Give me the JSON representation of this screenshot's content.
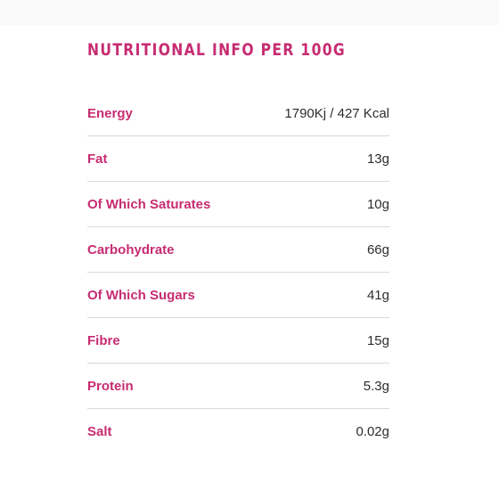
{
  "title": "NUTRITIONAL INFO PER 100G",
  "rows": [
    {
      "label": "Energy",
      "value": "1790Kj / 427 Kcal"
    },
    {
      "label": "Fat",
      "value": "13g"
    },
    {
      "label": "Of Which Saturates",
      "value": "10g"
    },
    {
      "label": "Carbohydrate",
      "value": "66g"
    },
    {
      "label": "Of Which Sugars",
      "value": "41g"
    },
    {
      "label": "Fibre",
      "value": "15g"
    },
    {
      "label": "Protein",
      "value": "5.3g"
    },
    {
      "label": "Salt",
      "value": "0.02g"
    }
  ],
  "colors": {
    "accent": "#c72c72",
    "value_text": "#2d2d2d",
    "divider": "#d9d9d9"
  }
}
